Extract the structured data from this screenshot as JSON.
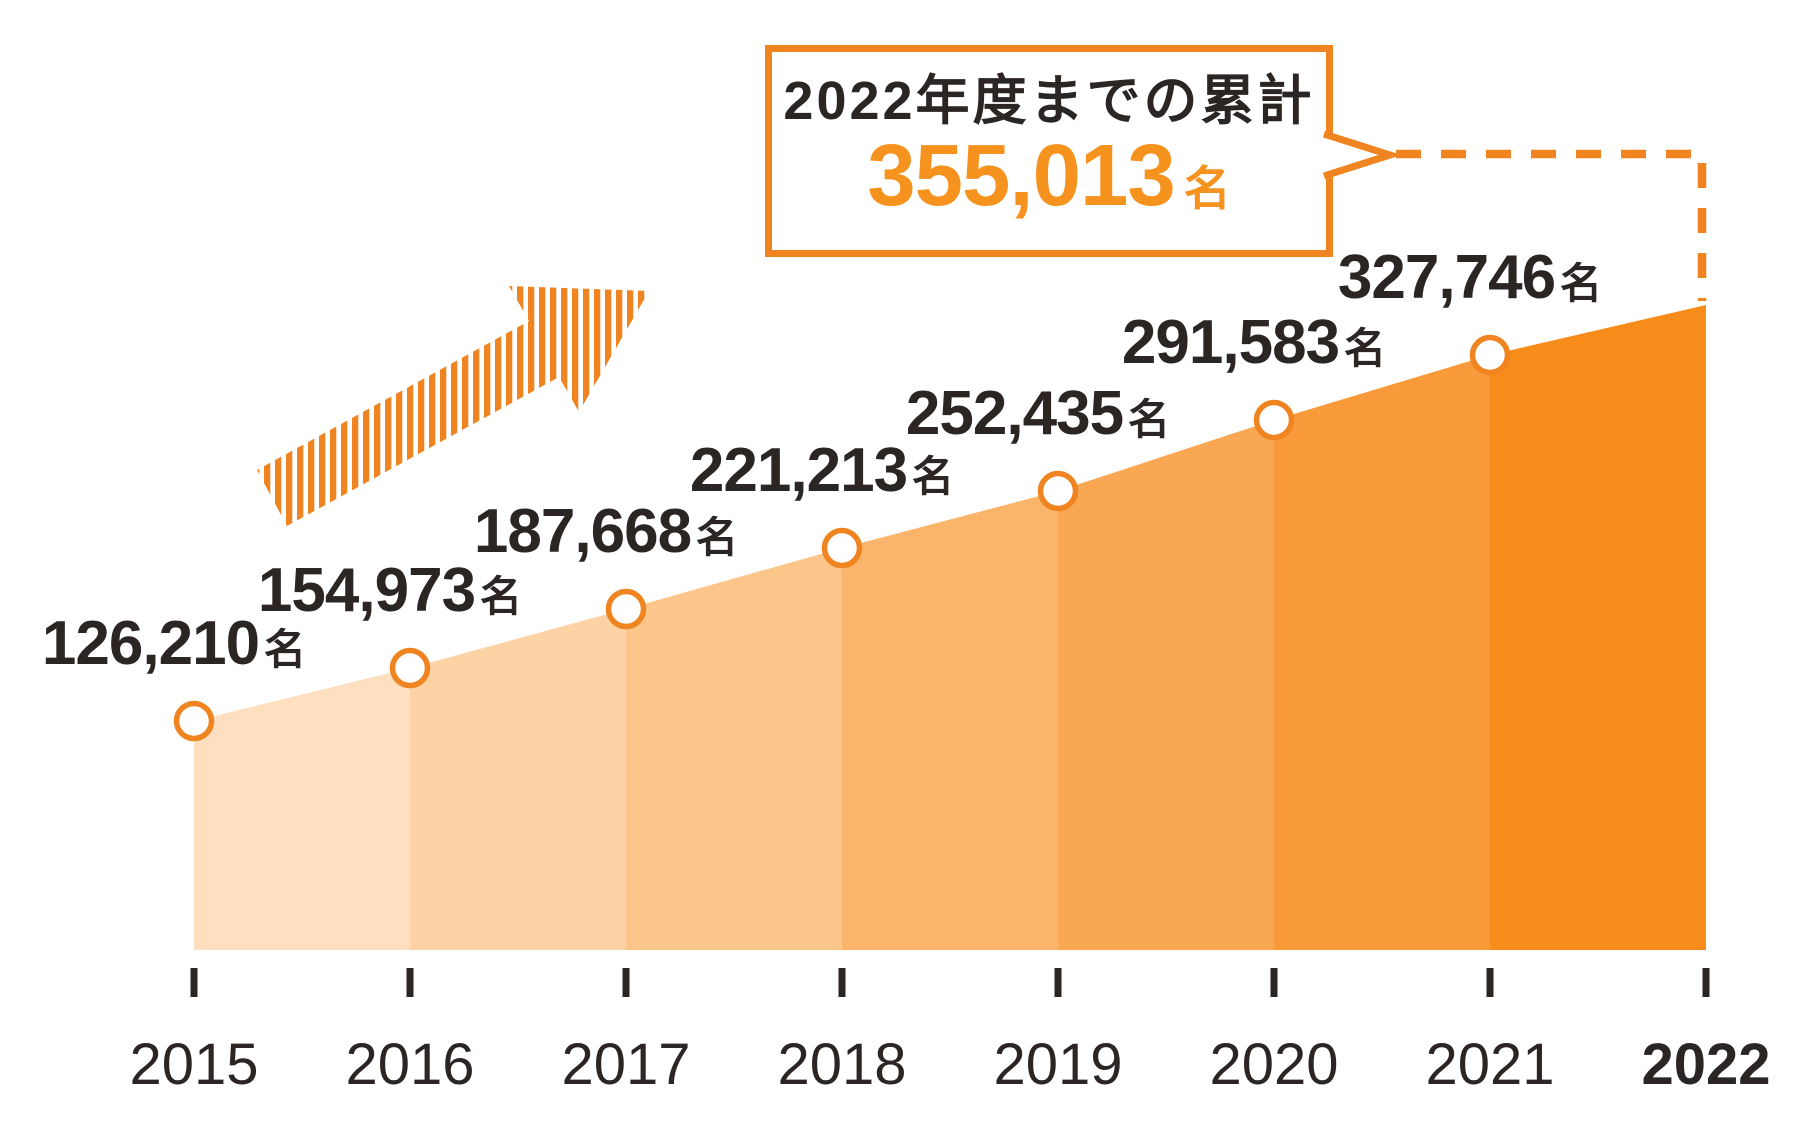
{
  "callout": {
    "heading": "2022年度までの累計",
    "value": "355,013",
    "unit": "名"
  },
  "chart_data": {
    "type": "area",
    "categories": [
      "2015",
      "2016",
      "2017",
      "2018",
      "2019",
      "2020",
      "2021",
      "2022"
    ],
    "values": [
      126210,
      154973,
      187668,
      221213,
      252435,
      291583,
      327746,
      355013
    ],
    "point_labels": [
      "126,210",
      "154,973",
      "187,668",
      "221,213",
      "252,435",
      "291,583",
      "327,746"
    ],
    "unit": "名",
    "title": "2022年度までの累計 355,013名",
    "xlabel": "",
    "ylabel": "",
    "ylim": [
      0,
      355013
    ],
    "grid": false,
    "legend": "none",
    "highlight_year": "2022",
    "annotation": "cumulative total callout linked by dashed line to 2022",
    "band_colors": [
      "#fedfbf",
      "#fdd2a5",
      "#fcc58a",
      "#fbb56a",
      "#faa754",
      "#f99a3a",
      "#f88c1b"
    ],
    "accent": "#ef8420",
    "number_color": "#f6921e",
    "text_color": "#2b2523"
  }
}
